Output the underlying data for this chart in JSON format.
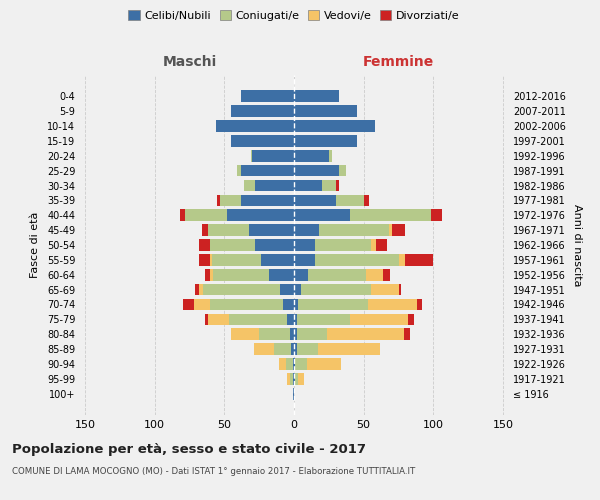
{
  "age_groups": [
    "100+",
    "95-99",
    "90-94",
    "85-89",
    "80-84",
    "75-79",
    "70-74",
    "65-69",
    "60-64",
    "55-59",
    "50-54",
    "45-49",
    "40-44",
    "35-39",
    "30-34",
    "25-29",
    "20-24",
    "15-19",
    "10-14",
    "5-9",
    "0-4"
  ],
  "birth_years": [
    "≤ 1916",
    "1917-1921",
    "1922-1926",
    "1927-1931",
    "1932-1936",
    "1937-1941",
    "1942-1946",
    "1947-1951",
    "1952-1956",
    "1957-1961",
    "1962-1966",
    "1967-1971",
    "1972-1976",
    "1977-1981",
    "1982-1986",
    "1987-1991",
    "1992-1996",
    "1997-2001",
    "2002-2006",
    "2007-2011",
    "2012-2016"
  ],
  "males": {
    "celibi": [
      1,
      1,
      1,
      2,
      3,
      5,
      8,
      10,
      18,
      24,
      28,
      32,
      48,
      38,
      28,
      38,
      30,
      45,
      56,
      45,
      38
    ],
    "coniugati": [
      0,
      2,
      5,
      12,
      22,
      42,
      52,
      55,
      40,
      35,
      32,
      30,
      30,
      15,
      8,
      3,
      1,
      0,
      0,
      0,
      0
    ],
    "vedovi": [
      0,
      2,
      5,
      15,
      20,
      15,
      12,
      3,
      2,
      1,
      0,
      0,
      0,
      0,
      0,
      0,
      0,
      0,
      0,
      0,
      0
    ],
    "divorziati": [
      0,
      0,
      0,
      0,
      0,
      2,
      8,
      3,
      4,
      8,
      8,
      4,
      4,
      2,
      0,
      0,
      0,
      0,
      0,
      0,
      0
    ]
  },
  "females": {
    "nubili": [
      0,
      1,
      1,
      2,
      2,
      2,
      3,
      5,
      10,
      15,
      15,
      18,
      40,
      30,
      20,
      32,
      25,
      45,
      58,
      45,
      32
    ],
    "coniugate": [
      0,
      2,
      8,
      15,
      22,
      38,
      50,
      50,
      42,
      60,
      40,
      50,
      58,
      20,
      10,
      5,
      2,
      0,
      0,
      0,
      0
    ],
    "vedove": [
      0,
      4,
      25,
      45,
      55,
      42,
      35,
      20,
      12,
      5,
      4,
      2,
      0,
      0,
      0,
      0,
      0,
      0,
      0,
      0,
      0
    ],
    "divorziate": [
      0,
      0,
      0,
      0,
      4,
      4,
      4,
      2,
      5,
      20,
      8,
      10,
      8,
      4,
      2,
      0,
      0,
      0,
      0,
      0,
      0
    ]
  },
  "colors": {
    "celibi": "#3d6fa5",
    "coniugati": "#b5c98a",
    "vedovi": "#f5c467",
    "divorziati": "#cc2222"
  },
  "xlim": 155,
  "title": "Popolazione per età, sesso e stato civile - 2017",
  "subtitle": "COMUNE DI LAMA MOCOGNO (MO) - Dati ISTAT 1° gennaio 2017 - Elaborazione TUTTITALIA.IT",
  "ylabel_left": "Fasce di età",
  "ylabel_right": "Anni di nascita",
  "legend_labels": [
    "Celibi/Nubili",
    "Coniugati/e",
    "Vedovi/e",
    "Divorziati/e"
  ],
  "maschi_label": "Maschi",
  "femmine_label": "Femmine",
  "bg_color": "#f0f0f0"
}
